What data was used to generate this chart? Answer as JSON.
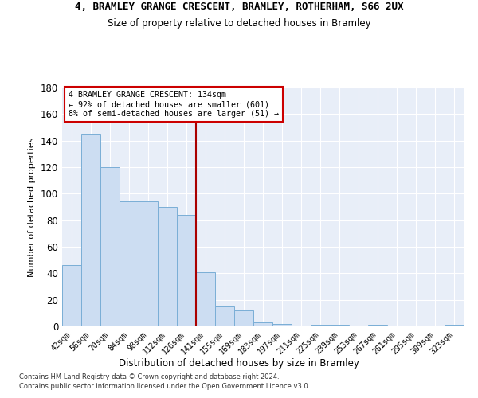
{
  "title_line1": "4, BRAMLEY GRANGE CRESCENT, BRAMLEY, ROTHERHAM, S66 2UX",
  "title_line2": "Size of property relative to detached houses in Bramley",
  "xlabel": "Distribution of detached houses by size in Bramley",
  "ylabel": "Number of detached properties",
  "categories": [
    "42sqm",
    "56sqm",
    "70sqm",
    "84sqm",
    "98sqm",
    "112sqm",
    "126sqm",
    "141sqm",
    "155sqm",
    "169sqm",
    "183sqm",
    "197sqm",
    "211sqm",
    "225sqm",
    "239sqm",
    "253sqm",
    "267sqm",
    "281sqm",
    "295sqm",
    "309sqm",
    "323sqm"
  ],
  "values": [
    46,
    145,
    120,
    94,
    94,
    90,
    84,
    41,
    15,
    12,
    3,
    2,
    0,
    1,
    1,
    0,
    1,
    0,
    0,
    0,
    1
  ],
  "bar_color": "#ccddf2",
  "bar_edge_color": "#7aaed6",
  "vline_after_index": 6,
  "vline_color": "#aa0000",
  "annotation_line1": "4 BRAMLEY GRANGE CRESCENT: 134sqm",
  "annotation_line2": "← 92% of detached houses are smaller (601)",
  "annotation_line3": "8% of semi-detached houses are larger (51) →",
  "annotation_box_edge": "#cc0000",
  "ylim": [
    0,
    180
  ],
  "yticks": [
    0,
    20,
    40,
    60,
    80,
    100,
    120,
    140,
    160,
    180
  ],
  "bg_color": "#e8eef8",
  "footer_line1": "Contains HM Land Registry data © Crown copyright and database right 2024.",
  "footer_line2": "Contains public sector information licensed under the Open Government Licence v3.0."
}
